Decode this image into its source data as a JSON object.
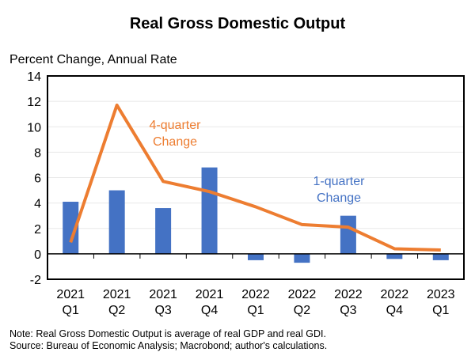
{
  "chart_data": {
    "type": "bar+line",
    "title": "Real Gross Domestic Output",
    "ylabel": "Percent Change, Annual Rate",
    "xlabel": "",
    "ylim": [
      -2,
      14
    ],
    "yticks": [
      -2,
      0,
      2,
      4,
      6,
      8,
      10,
      12,
      14
    ],
    "grid": true,
    "categories": [
      [
        "2021",
        "Q1"
      ],
      [
        "2021",
        "Q2"
      ],
      [
        "2021",
        "Q3"
      ],
      [
        "2021",
        "Q4"
      ],
      [
        "2022",
        "Q1"
      ],
      [
        "2022",
        "Q2"
      ],
      [
        "2022",
        "Q3"
      ],
      [
        "2022",
        "Q4"
      ],
      [
        "2023",
        "Q1"
      ]
    ],
    "series": [
      {
        "name": "1-quarter Change",
        "type": "bar",
        "color": "#4472C4",
        "label_lines": [
          "1-quarter",
          "Change"
        ],
        "values": [
          4.1,
          5.0,
          3.6,
          6.8,
          -0.5,
          -0.7,
          3.0,
          -0.4,
          -0.5
        ]
      },
      {
        "name": "4-quarter Change",
        "type": "line",
        "color": "#ED7D31",
        "label_lines": [
          "4-quarter",
          "Change"
        ],
        "values": [
          0.9,
          11.7,
          5.7,
          4.9,
          3.7,
          2.3,
          2.1,
          0.4,
          0.3
        ]
      }
    ],
    "notes": [
      "Note: Real Gross Domestic Output is average of real GDP and real GDI.",
      "Source: Bureau of Economic Analysis; Macrobond; author's calculations."
    ]
  }
}
